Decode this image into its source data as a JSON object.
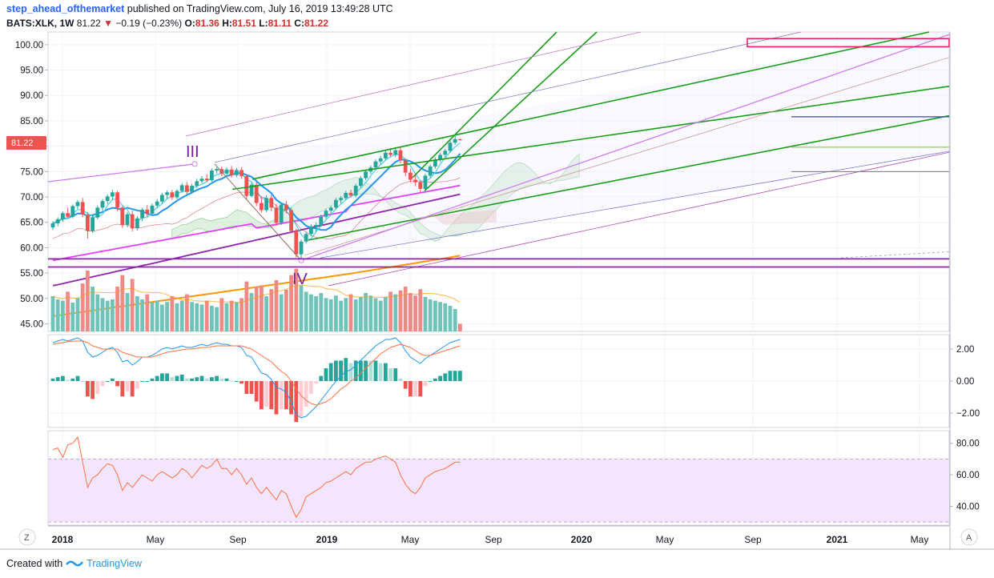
{
  "header": {
    "author": "step_ahead_ofthemarket",
    "published": "published on TradingView.com, July 16, 2019 13:49:28 UTC",
    "symbol": "BATS:XLK, 1W",
    "last": "81.22",
    "change": "−0.19 (−0.23%)",
    "o_label": "O:",
    "o": "81.36",
    "h_label": "H:",
    "h": "81.51",
    "l_label": "L:",
    "l": "81.11",
    "c_label": "C:",
    "c": "81.22"
  },
  "footer": {
    "created": "Created with",
    "brand": "TradingView"
  },
  "price_badge": "81.22",
  "wave_labels": {
    "iii": "III",
    "iv": "IV"
  },
  "bottom_buttons": {
    "left": "Z",
    "right": "A"
  },
  "colors": {
    "up": "#26a69a",
    "down": "#ef5350",
    "green_line": "#1a9e1a",
    "purple": "#9c27b0",
    "orange": "#ff9800",
    "rsi_band": "#e6ccff",
    "ma_blue": "#2196f3",
    "ma_cyan": "#4dd0e1"
  },
  "chart_data": [
    {
      "type": "candlestick",
      "panel": "price",
      "ylim": [
        43.5,
        102.5
      ],
      "y_ticks": [
        "100.00",
        "95.00",
        "90.00",
        "85.00",
        "80.00",
        "75.00",
        "70.00",
        "65.00",
        "60.00",
        "55.00",
        "50.00",
        "45.00"
      ],
      "x_ticks": [
        "2018",
        "May",
        "Sep",
        "2019",
        "May",
        "Sep",
        "2020",
        "May",
        "Sep",
        "2021",
        "May"
      ],
      "candles": [
        [
          64.0,
          65.2,
          63.5,
          64.8
        ],
        [
          64.8,
          66.0,
          64.2,
          65.6
        ],
        [
          65.6,
          67.2,
          65.1,
          66.8
        ],
        [
          66.8,
          67.9,
          66.0,
          66.1
        ],
        [
          66.1,
          68.5,
          65.8,
          68.2
        ],
        [
          68.2,
          69.4,
          67.6,
          69.0
        ],
        [
          69.0,
          69.8,
          66.0,
          66.5
        ],
        [
          66.5,
          67.0,
          61.8,
          63.3
        ],
        [
          63.3,
          66.5,
          62.9,
          66.0
        ],
        [
          66.0,
          68.3,
          65.6,
          67.9
        ],
        [
          67.9,
          69.6,
          67.3,
          69.2
        ],
        [
          69.2,
          70.5,
          68.6,
          70.1
        ],
        [
          70.1,
          71.4,
          69.4,
          70.9
        ],
        [
          70.9,
          71.2,
          67.2,
          67.9
        ],
        [
          67.9,
          68.2,
          63.9,
          64.5
        ],
        [
          64.5,
          67.0,
          64.0,
          66.6
        ],
        [
          66.6,
          67.3,
          63.2,
          63.8
        ],
        [
          63.8,
          66.2,
          63.4,
          65.8
        ],
        [
          65.8,
          67.9,
          65.2,
          67.5
        ],
        [
          67.5,
          68.4,
          66.1,
          66.7
        ],
        [
          66.7,
          68.7,
          66.3,
          68.3
        ],
        [
          68.3,
          69.6,
          67.8,
          69.1
        ],
        [
          69.1,
          70.8,
          68.7,
          70.4
        ],
        [
          70.4,
          71.3,
          69.6,
          70.9
        ],
        [
          70.9,
          71.4,
          69.4,
          69.9
        ],
        [
          69.9,
          71.5,
          69.5,
          71.2
        ],
        [
          71.2,
          72.7,
          70.8,
          72.3
        ],
        [
          72.3,
          72.9,
          70.4,
          71.0
        ],
        [
          71.0,
          72.6,
          70.6,
          72.2
        ],
        [
          72.2,
          73.6,
          71.8,
          73.1
        ],
        [
          73.1,
          74.1,
          72.7,
          73.6
        ],
        [
          73.6,
          74.5,
          72.9,
          73.3
        ],
        [
          73.3,
          75.6,
          73.0,
          75.2
        ],
        [
          75.2,
          75.8,
          74.6,
          75.5
        ],
        [
          75.5,
          76.0,
          74.1,
          74.6
        ],
        [
          74.6,
          75.8,
          74.2,
          75.4
        ],
        [
          75.4,
          76.1,
          73.8,
          74.3
        ],
        [
          74.3,
          75.7,
          73.9,
          75.3
        ],
        [
          75.3,
          75.9,
          73.6,
          74.1
        ],
        [
          74.1,
          74.5,
          69.6,
          70.2
        ],
        [
          70.2,
          72.8,
          69.9,
          72.4
        ],
        [
          72.4,
          72.9,
          68.2,
          68.8
        ],
        [
          68.8,
          70.1,
          66.9,
          67.4
        ],
        [
          67.4,
          70.3,
          67.0,
          69.8
        ],
        [
          69.8,
          70.4,
          67.2,
          67.9
        ],
        [
          67.9,
          68.6,
          64.3,
          64.9
        ],
        [
          64.9,
          68.9,
          64.5,
          68.5
        ],
        [
          68.5,
          69.2,
          66.8,
          67.4
        ],
        [
          67.4,
          67.9,
          62.8,
          63.3
        ],
        [
          63.3,
          63.7,
          58.1,
          58.7
        ],
        [
          58.7,
          61.6,
          57.6,
          61.2
        ],
        [
          61.2,
          63.1,
          60.8,
          62.7
        ],
        [
          62.7,
          64.6,
          62.3,
          64.2
        ],
        [
          64.2,
          65.0,
          63.1,
          64.5
        ],
        [
          64.5,
          66.5,
          64.1,
          66.1
        ],
        [
          66.1,
          67.7,
          65.7,
          67.3
        ],
        [
          67.3,
          68.3,
          66.7,
          67.9
        ],
        [
          67.9,
          69.8,
          67.5,
          69.4
        ],
        [
          69.4,
          70.2,
          68.7,
          69.8
        ],
        [
          69.8,
          71.2,
          69.4,
          70.8
        ],
        [
          70.8,
          71.4,
          69.9,
          70.3
        ],
        [
          70.3,
          72.6,
          69.9,
          72.2
        ],
        [
          72.2,
          74.1,
          71.8,
          73.7
        ],
        [
          73.7,
          75.4,
          73.3,
          75.0
        ],
        [
          75.0,
          76.2,
          74.5,
          75.8
        ],
        [
          75.8,
          77.4,
          75.4,
          77.0
        ],
        [
          77.0,
          78.1,
          76.4,
          77.6
        ],
        [
          77.6,
          79.1,
          77.2,
          78.7
        ],
        [
          78.7,
          79.6,
          77.9,
          78.3
        ],
        [
          78.3,
          79.7,
          77.9,
          79.2
        ],
        [
          79.2,
          79.7,
          76.6,
          77.2
        ],
        [
          77.2,
          77.6,
          74.1,
          74.8
        ],
        [
          74.8,
          75.6,
          72.9,
          73.4
        ],
        [
          73.4,
          74.6,
          72.1,
          72.9
        ],
        [
          72.9,
          73.3,
          70.8,
          71.6
        ],
        [
          71.6,
          74.6,
          71.2,
          74.2
        ],
        [
          74.2,
          76.4,
          73.8,
          76.0
        ],
        [
          76.0,
          77.8,
          75.6,
          77.4
        ],
        [
          77.4,
          78.7,
          76.9,
          78.3
        ],
        [
          78.3,
          79.5,
          77.8,
          79.1
        ],
        [
          79.1,
          81.1,
          78.7,
          80.7
        ],
        [
          80.7,
          82.0,
          80.3,
          81.4
        ],
        [
          81.36,
          81.51,
          81.11,
          81.22
        ]
      ],
      "volume_pct": [
        55,
        50,
        48,
        62,
        45,
        52,
        75,
        95,
        70,
        58,
        52,
        48,
        50,
        70,
        88,
        60,
        82,
        55,
        50,
        58,
        45,
        48,
        42,
        46,
        55,
        44,
        48,
        58,
        46,
        44,
        42,
        48,
        40,
        38,
        52,
        44,
        48,
        46,
        52,
        78,
        60,
        70,
        72,
        55,
        66,
        80,
        58,
        65,
        88,
        98,
        72,
        62,
        58,
        55,
        60,
        52,
        50,
        56,
        48,
        52,
        58,
        50,
        54,
        60,
        56,
        52,
        48,
        54,
        62,
        58,
        64,
        70,
        60,
        56,
        66,
        54,
        50,
        48,
        46,
        44,
        40,
        35,
        12
      ],
      "horizontal_levels": [
        85.8,
        79.8,
        75.0,
        57.8,
        56.2
      ],
      "zone_box": [
        99.6,
        101.2
      ]
    },
    {
      "type": "line",
      "panel": "macd",
      "y_ticks": [
        "2.00",
        "0.00",
        "−2.00"
      ],
      "ylim": [
        -2.9,
        2.9
      ],
      "series": [
        {
          "values": [
            2.4,
            2.5,
            2.6,
            2.5,
            2.6,
            2.7,
            2.5,
            1.8,
            1.5,
            1.6,
            1.8,
            2.0,
            2.1,
            1.8,
            1.2,
            1.3,
            1.0,
            1.2,
            1.5,
            1.5,
            1.6,
            1.8,
            2.0,
            2.1,
            2.0,
            2.1,
            2.2,
            2.1,
            2.1,
            2.2,
            2.3,
            2.2,
            2.3,
            2.4,
            2.3,
            2.3,
            2.2,
            2.2,
            2.1,
            1.6,
            1.5,
            1.0,
            0.5,
            0.4,
            0.1,
            -0.4,
            -0.5,
            -0.7,
            -1.3,
            -2.1,
            -2.3,
            -2.2,
            -1.9,
            -1.6,
            -1.2,
            -0.8,
            -0.4,
            0.0,
            0.3,
            0.6,
            0.7,
            1.0,
            1.3,
            1.6,
            1.9,
            2.2,
            2.4,
            2.6,
            2.6,
            2.7,
            2.4,
            1.9,
            1.5,
            1.3,
            1.1,
            1.4,
            1.6,
            1.8,
            2.0,
            2.2,
            2.4,
            2.5,
            2.6
          ]
        },
        {
          "values": [
            2.3,
            2.35,
            2.4,
            2.45,
            2.5,
            2.5,
            2.5,
            2.4,
            2.2,
            2.1,
            2.0,
            2.0,
            2.0,
            2.0,
            1.8,
            1.7,
            1.6,
            1.5,
            1.5,
            1.5,
            1.5,
            1.6,
            1.7,
            1.8,
            1.85,
            1.9,
            1.95,
            2.0,
            2.0,
            2.05,
            2.1,
            2.1,
            2.15,
            2.2,
            2.2,
            2.2,
            2.2,
            2.2,
            2.2,
            2.1,
            2.0,
            1.8,
            1.6,
            1.4,
            1.2,
            0.9,
            0.6,
            0.4,
            0.0,
            -0.5,
            -0.9,
            -1.2,
            -1.4,
            -1.5,
            -1.4,
            -1.3,
            -1.1,
            -0.8,
            -0.5,
            -0.3,
            0.0,
            0.2,
            0.5,
            0.8,
            1.1,
            1.4,
            1.7,
            1.9,
            2.1,
            2.2,
            2.3,
            2.2,
            2.1,
            1.9,
            1.7,
            1.6,
            1.6,
            1.7,
            1.8,
            1.9,
            2.0,
            2.1,
            2.2
          ]
        }
      ]
    },
    {
      "type": "line",
      "panel": "rsi",
      "y_ticks": [
        "80.00",
        "60.00",
        "40.00"
      ],
      "ylim": [
        28,
        88
      ],
      "band": [
        30,
        70
      ],
      "series": [
        {
          "values": [
            76,
            77,
            71,
            79,
            80,
            84,
            68,
            52,
            58,
            60,
            64,
            67,
            66,
            60,
            50,
            55,
            52,
            56,
            60,
            58,
            56,
            60,
            62,
            60,
            58,
            60,
            64,
            62,
            58,
            62,
            66,
            64,
            66,
            70,
            64,
            64,
            60,
            64,
            60,
            54,
            58,
            52,
            48,
            52,
            48,
            44,
            50,
            48,
            40,
            33,
            38,
            46,
            48,
            50,
            52,
            55,
            56,
            58,
            60,
            62,
            60,
            64,
            66,
            68,
            68,
            70,
            71,
            72,
            70,
            68,
            60,
            54,
            50,
            48,
            52,
            58,
            60,
            62,
            63,
            64,
            66,
            68,
            68
          ]
        }
      ]
    }
  ]
}
